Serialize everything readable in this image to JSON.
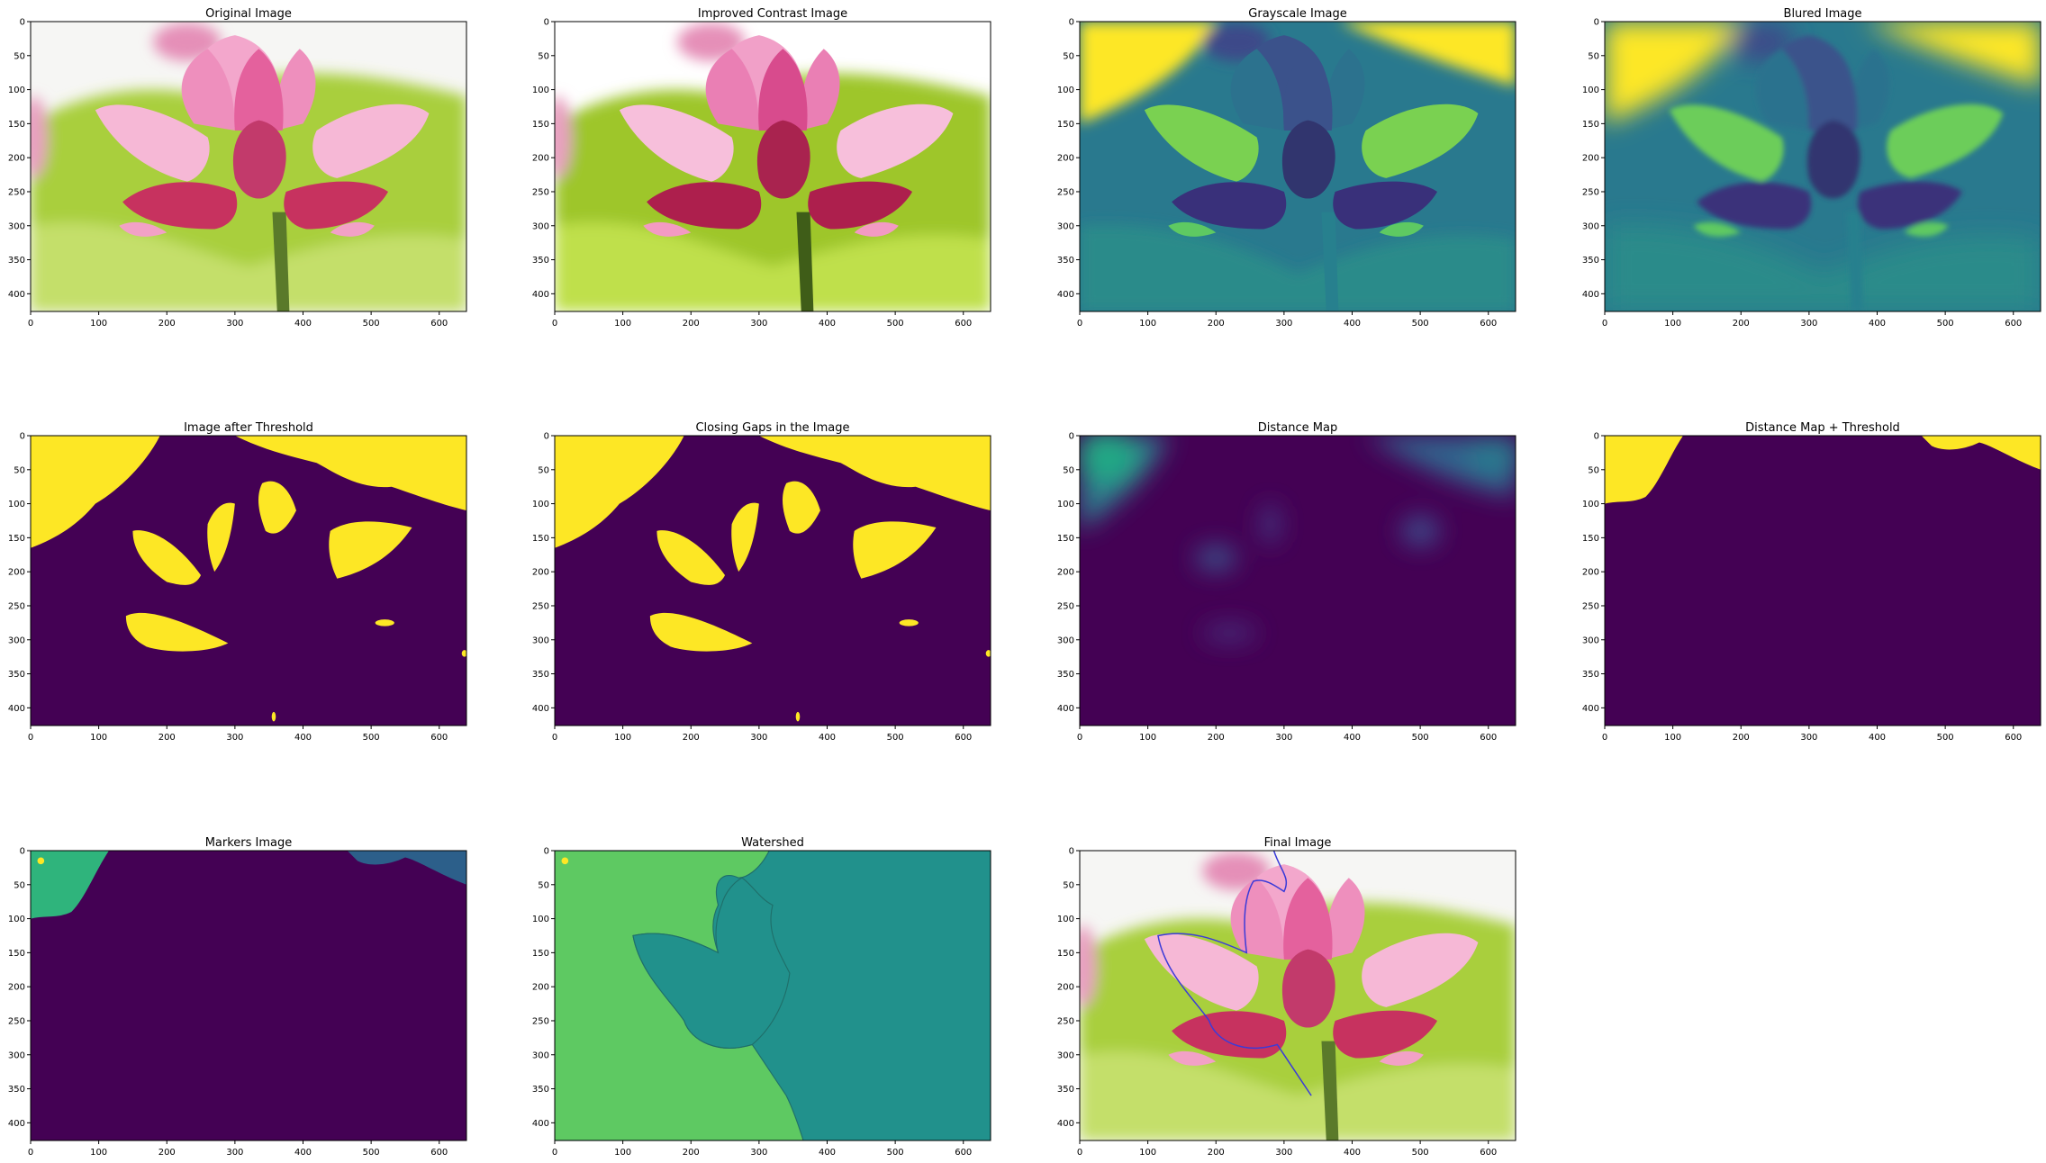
{
  "figure": {
    "panels": [
      {
        "id": "original",
        "title": "Original Image",
        "kind": "photo"
      },
      {
        "id": "contrast",
        "title": "Improved Contrast Image",
        "kind": "photo_contrast"
      },
      {
        "id": "gray",
        "title": "Grayscale Image",
        "kind": "gray"
      },
      {
        "id": "blur",
        "title": "Blured Image",
        "kind": "blur"
      },
      {
        "id": "thresh",
        "title": "Image after Threshold",
        "kind": "thresh"
      },
      {
        "id": "closing",
        "title": "Closing Gaps in the Image",
        "kind": "thresh"
      },
      {
        "id": "dist",
        "title": "Distance Map",
        "kind": "dist"
      },
      {
        "id": "dist_thresh",
        "title": "Distance Map + Threshold",
        "kind": "dist_thresh"
      },
      {
        "id": "markers",
        "title": "Markers Image",
        "kind": "markers"
      },
      {
        "id": "watershed",
        "title": "Watershed",
        "kind": "watershed"
      },
      {
        "id": "final",
        "title": "Final Image",
        "kind": "final"
      }
    ],
    "x_ticks": [
      "0",
      "100",
      "200",
      "300",
      "400",
      "500",
      "600"
    ],
    "y_ticks": [
      "0",
      "50",
      "100",
      "150",
      "200",
      "250",
      "300",
      "350",
      "400"
    ],
    "image_extent": {
      "width": 640,
      "height": 426
    },
    "colors": {
      "viridis_dark": "#440154",
      "viridis_teal": "#21918c",
      "viridis_green": "#5ec962",
      "viridis_yellow": "#fde725",
      "leaf": "#a9cf3e",
      "petal": "#e86aa5",
      "petal_dark": "#c2285e",
      "contour": "#3b3bd8"
    }
  }
}
